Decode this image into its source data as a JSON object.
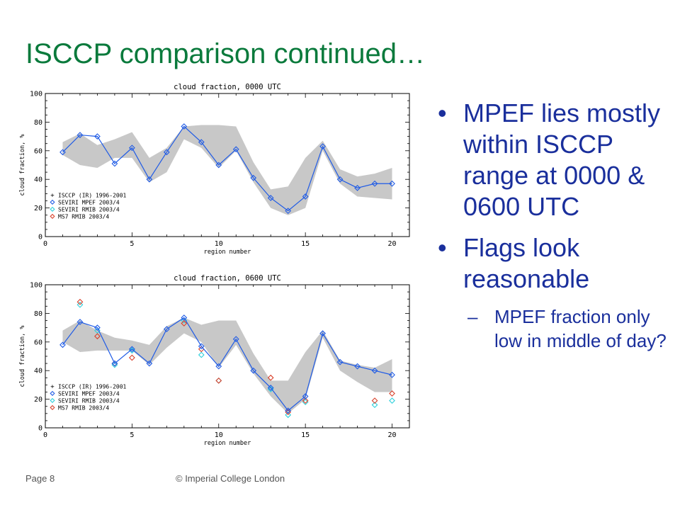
{
  "slide": {
    "title": "ISCCP comparison continued…",
    "bullets": [
      "MPEF lies mostly within ISCCP range at 0000 & 0600 UTC",
      "Flags look reasonable"
    ],
    "sub_bullets": [
      "MPEF fraction only low in middle of day?"
    ],
    "bullet_glyph": "•",
    "dash_glyph": "–",
    "footer_left": "Page 8",
    "footer_center": "© Imperial College London"
  },
  "colors": {
    "title": "#0a7a3c",
    "text": "#1a2f9c",
    "band": "#c8c8c8",
    "mpef": "#1f5be6",
    "rmib": "#2ed0dc",
    "ms7": "#d9412b"
  },
  "chart_data": [
    {
      "type": "line",
      "title": "cloud fraction, 0000 UTC",
      "xlabel": "region number",
      "ylabel": "cloud fraction, %",
      "xlim": [
        0,
        21
      ],
      "ylim": [
        0,
        100
      ],
      "xticks": [
        0,
        5,
        10,
        15,
        20
      ],
      "yticks": [
        0,
        20,
        40,
        60,
        80,
        100
      ],
      "legend": {
        "placement": "lower-left",
        "entries": [
          "+ ISCCP (IR) 1996-2001",
          "◇ SEVIRI MPEF 2003/4",
          "◇ SEVIRI RMIB 2003/4",
          "◇ MS7 RMIB 2003/4"
        ]
      },
      "band": {
        "name": "ISCCP (IR) 1996-2001",
        "x": [
          1,
          2,
          3,
          4,
          5,
          6,
          7,
          8,
          9,
          10,
          11,
          12,
          13,
          14,
          15,
          16,
          17,
          18,
          19,
          20
        ],
        "low": [
          57,
          50,
          48,
          55,
          55,
          38,
          45,
          68,
          62,
          48,
          60,
          38,
          20,
          15,
          20,
          60,
          37,
          28,
          27,
          26
        ],
        "high": [
          66,
          72,
          64,
          68,
          73,
          55,
          62,
          77,
          78,
          78,
          77,
          52,
          33,
          35,
          55,
          67,
          47,
          42,
          44,
          48
        ]
      },
      "series": [
        {
          "name": "SEVIRI MPEF 2003/4",
          "x": [
            1,
            2,
            3,
            4,
            5,
            6,
            7,
            8,
            9,
            10,
            11,
            12,
            13,
            14,
            15,
            16,
            17,
            18,
            19,
            20
          ],
          "values": [
            59,
            71,
            70,
            51,
            62,
            40,
            59,
            77,
            66,
            50,
            61,
            41,
            27,
            18,
            28,
            63,
            40,
            34,
            37,
            37
          ]
        }
      ]
    },
    {
      "type": "line",
      "title": "cloud fraction, 0600 UTC",
      "xlabel": "region number",
      "ylabel": "cloud fraction, %",
      "xlim": [
        0,
        21
      ],
      "ylim": [
        0,
        100
      ],
      "xticks": [
        0,
        5,
        10,
        15,
        20
      ],
      "yticks": [
        0,
        20,
        40,
        60,
        80,
        100
      ],
      "legend": {
        "placement": "lower-left",
        "entries": [
          "+ ISCCP (IR) 1996-2001",
          "◇ SEVIRI MPEF 2003/4",
          "◇ SEVIRI RMIB 2003/4",
          "◇ MS7 RMIB 2003/4"
        ]
      },
      "band": {
        "name": "ISCCP (IR) 1996-2001",
        "x": [
          1,
          2,
          3,
          4,
          5,
          6,
          7,
          8,
          9,
          10,
          11,
          12,
          13,
          14,
          15,
          16,
          17,
          18,
          19,
          20
        ],
        "low": [
          60,
          53,
          54,
          54,
          54,
          44,
          56,
          66,
          60,
          42,
          58,
          38,
          22,
          10,
          20,
          63,
          40,
          32,
          25,
          25
        ],
        "high": [
          68,
          75,
          68,
          63,
          61,
          58,
          71,
          77,
          72,
          75,
          75,
          52,
          33,
          33,
          53,
          68,
          47,
          44,
          42,
          48
        ]
      },
      "series": [
        {
          "name": "SEVIRI MPEF 2003/4",
          "x": [
            1,
            2,
            3,
            4,
            5,
            6,
            7,
            8,
            9,
            10,
            11,
            12,
            13,
            14,
            15,
            16,
            17,
            18,
            19,
            20
          ],
          "values": [
            58,
            74,
            70,
            45,
            55,
            45,
            69,
            77,
            57,
            43,
            62,
            40,
            28,
            12,
            22,
            66,
            46,
            43,
            40,
            37
          ]
        },
        {
          "name": "SEVIRI RMIB 2003/4",
          "x": [
            2,
            3,
            4,
            5,
            8,
            9,
            10,
            13,
            14,
            15,
            19,
            20
          ],
          "values": [
            86,
            68,
            44,
            54,
            75,
            51,
            33,
            27,
            9,
            18,
            16,
            19
          ]
        },
        {
          "name": "MS7 RMIB 2003/4",
          "x": [
            2,
            3,
            4,
            5,
            8,
            9,
            10,
            13,
            14,
            15,
            19,
            20
          ],
          "values": [
            88,
            64,
            45,
            49,
            73,
            55,
            33,
            35,
            11,
            19,
            19,
            24
          ]
        }
      ]
    }
  ]
}
